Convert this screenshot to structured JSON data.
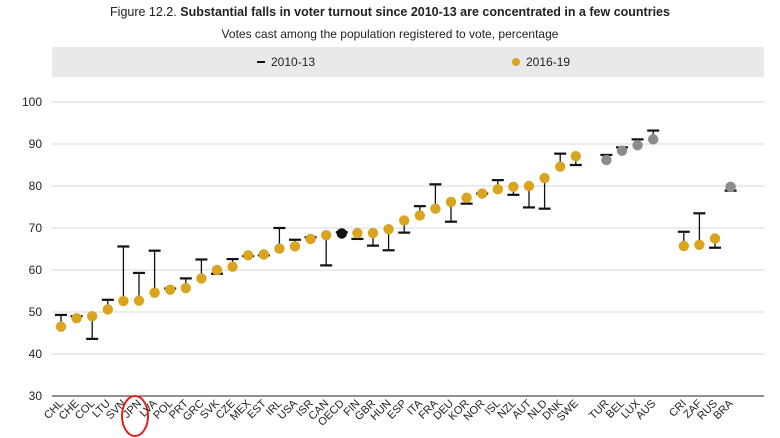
{
  "header": {
    "figure_number": "Figure 12.2.",
    "title": "Substantial falls in voter turnout since 2010-13 are concentrated in a few countries",
    "subtitle": "Votes cast among the population registered to vote, percentage"
  },
  "legend": {
    "series_2010": "2010-13",
    "series_2016": "2016-19"
  },
  "colors": {
    "dot_main": "#d9a520",
    "dot_grey": "#8c8c8c",
    "dot_oecd": "#111111",
    "bar": "#111111",
    "grid": "#d9d9d9",
    "highlight": "#e0201b"
  },
  "highlighted_country": "JPN",
  "chart_data": {
    "type": "scatter",
    "title": "Substantial falls in voter turnout since 2010-13 are concentrated in a few countries",
    "ylabel": "Votes cast among the population registered to vote, percentage",
    "ylim": [
      30,
      100
    ],
    "yticks": [
      30,
      40,
      50,
      60,
      70,
      80,
      90,
      100
    ],
    "grid": true,
    "legend_position": "top",
    "series": [
      {
        "name": "2010-13",
        "marker": "bar"
      },
      {
        "name": "2016-19",
        "marker": "dot"
      }
    ],
    "groups": [
      {
        "name": "main",
        "points": [
          {
            "country": "CHL",
            "v2010": 49.3,
            "v2016": 46.5,
            "dot": "main"
          },
          {
            "country": "CHE",
            "v2010": 49.0,
            "v2016": 48.5,
            "dot": "main"
          },
          {
            "country": "COL",
            "v2010": 43.6,
            "v2016": 49.0,
            "dot": "main"
          },
          {
            "country": "LTU",
            "v2010": 52.9,
            "v2016": 50.6,
            "dot": "main"
          },
          {
            "country": "SVN",
            "v2010": 65.6,
            "v2016": 52.6,
            "dot": "main"
          },
          {
            "country": "JPN",
            "v2010": 59.3,
            "v2016": 52.7,
            "dot": "main"
          },
          {
            "country": "LVA",
            "v2010": 64.6,
            "v2016": 54.6,
            "dot": "main"
          },
          {
            "country": "POL",
            "v2010": 55.6,
            "v2016": 55.3,
            "dot": "main"
          },
          {
            "country": "PRT",
            "v2010": 58.0,
            "v2016": 55.7,
            "dot": "main"
          },
          {
            "country": "GRC",
            "v2010": 62.5,
            "v2016": 58.0,
            "dot": "main"
          },
          {
            "country": "SVK",
            "v2010": 59.1,
            "v2016": 60.0,
            "dot": "main"
          },
          {
            "country": "CZE",
            "v2010": 62.6,
            "v2016": 60.8,
            "dot": "main"
          },
          {
            "country": "MEX",
            "v2010": 63.3,
            "v2016": 63.5,
            "dot": "main"
          },
          {
            "country": "EST",
            "v2010": 63.5,
            "v2016": 63.7,
            "dot": "main"
          },
          {
            "country": "IRL",
            "v2010": 70.0,
            "v2016": 65.1,
            "dot": "main"
          },
          {
            "country": "USA",
            "v2010": 67.2,
            "v2016": 65.6,
            "dot": "main"
          },
          {
            "country": "ISR",
            "v2010": 67.8,
            "v2016": 67.4,
            "dot": "main"
          },
          {
            "country": "CAN",
            "v2010": 61.1,
            "v2016": 68.3,
            "dot": "main"
          },
          {
            "country": "OECD",
            "v2010": 69.0,
            "v2016": 68.7,
            "dot": "oecd"
          },
          {
            "country": "FIN",
            "v2010": 67.4,
            "v2016": 68.8,
            "dot": "main"
          },
          {
            "country": "GBR",
            "v2010": 65.8,
            "v2016": 68.8,
            "dot": "main"
          },
          {
            "country": "HUN",
            "v2010": 64.7,
            "v2016": 69.7,
            "dot": "main"
          },
          {
            "country": "ESP",
            "v2010": 68.9,
            "v2016": 71.8,
            "dot": "main"
          },
          {
            "country": "ITA",
            "v2010": 75.2,
            "v2016": 73.0,
            "dot": "main"
          },
          {
            "country": "FRA",
            "v2010": 80.4,
            "v2016": 74.6,
            "dot": "main"
          },
          {
            "country": "DEU",
            "v2010": 71.5,
            "v2016": 76.2,
            "dot": "main"
          },
          {
            "country": "KOR",
            "v2010": 75.8,
            "v2016": 77.2,
            "dot": "main"
          },
          {
            "country": "NOR",
            "v2010": 78.2,
            "v2016": 78.2,
            "dot": "main"
          },
          {
            "country": "ISL",
            "v2010": 81.4,
            "v2016": 79.2,
            "dot": "main"
          },
          {
            "country": "NZL",
            "v2010": 77.9,
            "v2016": 79.8,
            "dot": "main"
          },
          {
            "country": "AUT",
            "v2010": 74.9,
            "v2016": 80.0,
            "dot": "main"
          },
          {
            "country": "NLD",
            "v2010": 74.6,
            "v2016": 81.9,
            "dot": "main"
          },
          {
            "country": "DNK",
            "v2010": 87.7,
            "v2016": 84.6,
            "dot": "main"
          },
          {
            "country": "SWE",
            "v2010": 85.0,
            "v2016": 87.1,
            "dot": "main"
          }
        ]
      },
      {
        "name": "compulsory",
        "points": [
          {
            "country": "TUR",
            "v2010": 87.4,
            "v2016": 86.2,
            "dot": "grey"
          },
          {
            "country": "BEL",
            "v2010": 89.2,
            "v2016": 88.4,
            "dot": "grey"
          },
          {
            "country": "LUX",
            "v2010": 91.1,
            "v2016": 89.7,
            "dot": "grey"
          },
          {
            "country": "AUS",
            "v2010": 93.2,
            "v2016": 91.1,
            "dot": "grey"
          }
        ]
      },
      {
        "name": "partners",
        "points": [
          {
            "country": "CRI",
            "v2010": 69.1,
            "v2016": 65.7,
            "dot": "main"
          },
          {
            "country": "ZAF",
            "v2010": 73.5,
            "v2016": 66.0,
            "dot": "main"
          },
          {
            "country": "RUS",
            "v2010": 65.3,
            "v2016": 67.5,
            "dot": "main"
          },
          {
            "country": "BRA",
            "v2010": 78.9,
            "v2016": 79.8,
            "dot": "grey"
          }
        ]
      }
    ]
  }
}
